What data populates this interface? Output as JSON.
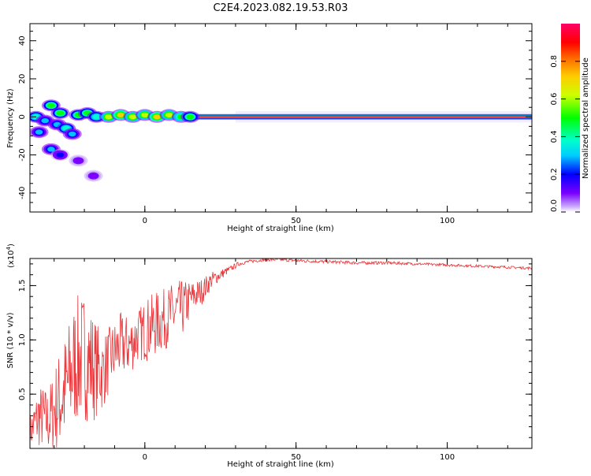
{
  "title": "C2E4.2023.082.19.53.R03",
  "chart_data": [
    {
      "type": "heatmap",
      "xlabel": "Height of straight line (km)",
      "ylabel": "Frequency (Hz)",
      "xlim": [
        -38,
        128
      ],
      "ylim": [
        -50,
        49
      ],
      "xticks": [
        "0",
        "50",
        "100"
      ],
      "xtick_values": [
        0,
        50,
        100
      ],
      "yticks": [
        "40",
        "20",
        "0",
        "-20",
        "-40"
      ],
      "ytick_values": [
        40,
        20,
        0,
        -20,
        -40
      ],
      "colorbar": {
        "label": "Normalized spectral amplitude",
        "ticks": [
          "0.0",
          "0.2",
          "0.4",
          "0.6",
          "0.8"
        ],
        "tick_values": [
          0.0,
          0.2,
          0.4,
          0.6,
          0.8
        ],
        "range": [
          0,
          1
        ]
      },
      "main_band": {
        "x_start": 17,
        "x_end": 128,
        "frequency": 0,
        "amplitude": 0.95
      },
      "blobs": [
        {
          "x": -36,
          "y": 0,
          "a": 0.35
        },
        {
          "x": -33,
          "y": -2,
          "a": 0.3
        },
        {
          "x": -35,
          "y": -8,
          "a": 0.25
        },
        {
          "x": -31,
          "y": 6,
          "a": 0.45
        },
        {
          "x": -28,
          "y": 2,
          "a": 0.5
        },
        {
          "x": -29,
          "y": -4,
          "a": 0.3
        },
        {
          "x": -26,
          "y": -6,
          "a": 0.35
        },
        {
          "x": -24,
          "y": -9,
          "a": 0.3
        },
        {
          "x": -22,
          "y": 1,
          "a": 0.45
        },
        {
          "x": -19,
          "y": 2,
          "a": 0.5
        },
        {
          "x": -16,
          "y": 0,
          "a": 0.4
        },
        {
          "x": -31,
          "y": -17,
          "a": 0.25
        },
        {
          "x": -28,
          "y": -20,
          "a": 0.15
        },
        {
          "x": -12,
          "y": 0,
          "a": 0.6
        },
        {
          "x": -8,
          "y": 1,
          "a": 0.7
        },
        {
          "x": -4,
          "y": 0,
          "a": 0.65
        },
        {
          "x": 0,
          "y": 1,
          "a": 0.6
        },
        {
          "x": 4,
          "y": 0,
          "a": 0.7
        },
        {
          "x": 8,
          "y": 1,
          "a": 0.6
        },
        {
          "x": 12,
          "y": 0,
          "a": 0.55
        },
        {
          "x": 15,
          "y": 0,
          "a": 0.5
        },
        {
          "x": -17,
          "y": -31,
          "a": 0.1
        },
        {
          "x": -22,
          "y": -23,
          "a": 0.08
        }
      ]
    },
    {
      "type": "line",
      "xlabel": "Height of straight line (km)",
      "ylabel": "SNR (10 * v/v)",
      "multiplier": "(x10",
      "multiplier_exp": "4",
      "multiplier_close": ")",
      "xlim": [
        -38,
        128
      ],
      "ylim": [
        0,
        1.75
      ],
      "xticks": [
        "0",
        "50",
        "100"
      ],
      "xtick_values": [
        0,
        50,
        100
      ],
      "yticks": [
        "0.5",
        "1.0",
        "1.5"
      ],
      "ytick_values": [
        0.5,
        1.0,
        1.5
      ],
      "color": "#e8363a",
      "x": [
        -38,
        -35,
        -32,
        -29,
        -26,
        -23,
        -20,
        -17,
        -14,
        -11,
        -8,
        -5,
        -2,
        1,
        4,
        7,
        10,
        13,
        16,
        19,
        22,
        25,
        28,
        31,
        34,
        37,
        40,
        45,
        50,
        60,
        70,
        80,
        90,
        100,
        110,
        120,
        128
      ],
      "values": [
        0.15,
        0.3,
        0.25,
        0.4,
        0.55,
        0.8,
        0.85,
        0.75,
        0.7,
        0.85,
        0.95,
        0.95,
        1.05,
        1.1,
        1.15,
        1.2,
        1.25,
        1.3,
        1.4,
        1.45,
        1.55,
        1.6,
        1.65,
        1.7,
        1.72,
        1.73,
        1.74,
        1.74,
        1.73,
        1.72,
        1.71,
        1.71,
        1.7,
        1.69,
        1.68,
        1.67,
        1.66
      ],
      "noise": [
        0.15,
        0.3,
        0.3,
        0.45,
        0.55,
        0.6,
        0.6,
        0.5,
        0.35,
        0.3,
        0.3,
        0.28,
        0.25,
        0.3,
        0.3,
        0.28,
        0.3,
        0.25,
        0.15,
        0.12,
        0.08,
        0.05,
        0.03,
        0.02,
        0.015,
        0.015,
        0.015,
        0.015,
        0.015,
        0.015,
        0.015,
        0.015,
        0.012,
        0.012,
        0.012,
        0.012,
        0.012
      ]
    }
  ]
}
